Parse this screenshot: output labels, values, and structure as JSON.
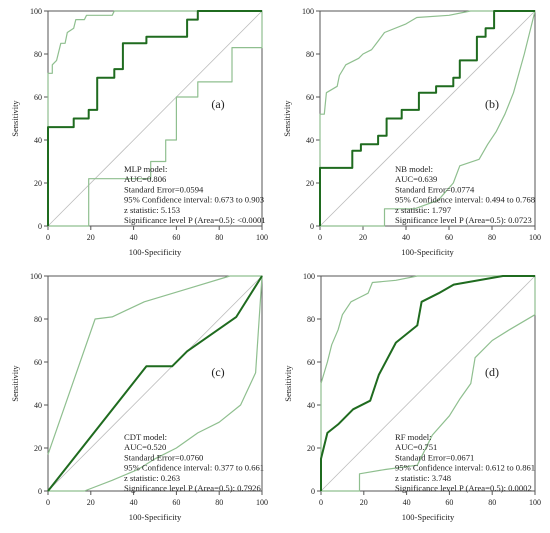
{
  "colors": {
    "roc": "#1f6b1f",
    "ci": "#8fbf8f",
    "diagonal": "#c8c8c8"
  },
  "chart_data": [
    {
      "type": "line",
      "tag": "(a)",
      "xlabel": "100-Specificity",
      "ylabel": "Sensitivity",
      "xlim": [
        0,
        100
      ],
      "ylim": [
        0,
        100
      ],
      "xticks": [
        0,
        20,
        40,
        60,
        80,
        100
      ],
      "yticks": [
        0,
        20,
        40,
        60,
        80,
        100
      ],
      "stats": [
        "MLP model:",
        "AUC=0.806",
        "Standard Error=0.0594",
        "95% Confidence interval: 0.673 to 0.903",
        "z statistic: 5.153",
        "Significance level P (Area=0.5): <0.0001"
      ],
      "series": [
        {
          "role": "roc",
          "points": [
            [
              0,
              0
            ],
            [
              0,
              46
            ],
            [
              12,
              46
            ],
            [
              12,
              50
            ],
            [
              19,
              50
            ],
            [
              19,
              54
            ],
            [
              23,
              54
            ],
            [
              23,
              69
            ],
            [
              31,
              69
            ],
            [
              31,
              73
            ],
            [
              35,
              73
            ],
            [
              35,
              85
            ],
            [
              46,
              85
            ],
            [
              46,
              88
            ],
            [
              65,
              88
            ],
            [
              65,
              96
            ],
            [
              70,
              96
            ],
            [
              70,
              100
            ],
            [
              100,
              100
            ]
          ]
        },
        {
          "role": "upper",
          "points": [
            [
              0,
              0
            ],
            [
              0,
              71
            ],
            [
              2,
              71
            ],
            [
              2,
              75
            ],
            [
              4,
              77
            ],
            [
              6,
              85
            ],
            [
              8,
              85
            ],
            [
              9,
              90
            ],
            [
              12,
              92
            ],
            [
              13,
              96
            ],
            [
              17,
              96
            ],
            [
              18,
              98
            ],
            [
              30,
              98
            ],
            [
              31,
              100
            ],
            [
              100,
              100
            ]
          ]
        },
        {
          "role": "lower",
          "points": [
            [
              0,
              0
            ],
            [
              19,
              0
            ],
            [
              19,
              22
            ],
            [
              20,
              22
            ],
            [
              48,
              22
            ],
            [
              48,
              30
            ],
            [
              55,
              30
            ],
            [
              55,
              40
            ],
            [
              60,
              40
            ],
            [
              60,
              60
            ],
            [
              70,
              60
            ],
            [
              70,
              67
            ],
            [
              86,
              67
            ],
            [
              86,
              83
            ],
            [
              100,
              83
            ],
            [
              100,
              100
            ]
          ]
        }
      ]
    },
    {
      "type": "line",
      "tag": "(b)",
      "xlabel": "100-Specificity",
      "ylabel": "Sensitivity",
      "xlim": [
        0,
        100
      ],
      "ylim": [
        0,
        100
      ],
      "xticks": [
        0,
        20,
        40,
        60,
        80,
        100
      ],
      "yticks": [
        0,
        20,
        40,
        60,
        80,
        100
      ],
      "stats": [
        "NB model:",
        "AUC=0.639",
        "Standard Error=0.0774",
        "95% Confidence interval: 0.494 to 0.768",
        "z statistic: 1.797",
        "Significance level P (Area=0.5): 0.0723"
      ],
      "series": [
        {
          "role": "roc",
          "points": [
            [
              0,
              0
            ],
            [
              0,
              27
            ],
            [
              15,
              27
            ],
            [
              15,
              35
            ],
            [
              19,
              35
            ],
            [
              19,
              38
            ],
            [
              27,
              38
            ],
            [
              27,
              42
            ],
            [
              31,
              42
            ],
            [
              31,
              50
            ],
            [
              38,
              50
            ],
            [
              38,
              54
            ],
            [
              46,
              54
            ],
            [
              46,
              62
            ],
            [
              54,
              62
            ],
            [
              54,
              65
            ],
            [
              62,
              65
            ],
            [
              62,
              69
            ],
            [
              65,
              69
            ],
            [
              65,
              77
            ],
            [
              73,
              77
            ],
            [
              73,
              88
            ],
            [
              77,
              88
            ],
            [
              77,
              92
            ],
            [
              81,
              92
            ],
            [
              81,
              100
            ],
            [
              100,
              100
            ]
          ]
        },
        {
          "role": "upper",
          "points": [
            [
              0,
              0
            ],
            [
              0,
              52
            ],
            [
              2,
              52
            ],
            [
              3,
              62
            ],
            [
              8,
              65
            ],
            [
              9,
              70
            ],
            [
              12,
              75
            ],
            [
              18,
              78
            ],
            [
              20,
              80
            ],
            [
              24,
              82
            ],
            [
              27,
              86
            ],
            [
              30,
              90
            ],
            [
              40,
              94
            ],
            [
              45,
              97
            ],
            [
              60,
              98
            ],
            [
              70,
              100
            ],
            [
              100,
              100
            ]
          ]
        },
        {
          "role": "lower",
          "points": [
            [
              0,
              0
            ],
            [
              30,
              0
            ],
            [
              30,
              8
            ],
            [
              44,
              8
            ],
            [
              55,
              12
            ],
            [
              62,
              20
            ],
            [
              65,
              28
            ],
            [
              74,
              31
            ],
            [
              78,
              38
            ],
            [
              82,
              44
            ],
            [
              86,
              52
            ],
            [
              90,
              62
            ],
            [
              95,
              80
            ],
            [
              100,
              100
            ]
          ]
        }
      ]
    },
    {
      "type": "line",
      "tag": "(c)",
      "xlabel": "100-Specificity",
      "ylabel": "Sensitivity",
      "xlim": [
        0,
        100
      ],
      "ylim": [
        0,
        100
      ],
      "xticks": [
        0,
        20,
        40,
        60,
        80,
        100
      ],
      "yticks": [
        0,
        20,
        40,
        60,
        80,
        100
      ],
      "stats": [
        "CDT model:",
        "AUC=0.520",
        "Standard Error=0.0760",
        "95% Confidence interval: 0.377 to 0.661",
        "z statistic: 0.263",
        "Significance level P (Area=0.5): 0.7926"
      ],
      "series": [
        {
          "role": "roc",
          "points": [
            [
              0,
              0
            ],
            [
              46,
              58
            ],
            [
              58,
              58
            ],
            [
              65,
              65
            ],
            [
              88,
              81
            ],
            [
              100,
              100
            ]
          ]
        },
        {
          "role": "upper",
          "points": [
            [
              0,
              17
            ],
            [
              22,
              80
            ],
            [
              30,
              81
            ],
            [
              45,
              88
            ],
            [
              65,
              94
            ],
            [
              85,
              100
            ],
            [
              100,
              100
            ]
          ]
        },
        {
          "role": "lower",
          "points": [
            [
              0,
              0
            ],
            [
              17,
              0
            ],
            [
              30,
              5
            ],
            [
              42,
              10
            ],
            [
              50,
              15
            ],
            [
              60,
              20
            ],
            [
              70,
              27
            ],
            [
              80,
              32
            ],
            [
              90,
              40
            ],
            [
              97,
              55
            ],
            [
              100,
              100
            ]
          ]
        }
      ]
    },
    {
      "type": "line",
      "tag": "(d)",
      "xlabel": "100-Specificity",
      "ylabel": "Sensitivity",
      "xlim": [
        0,
        100
      ],
      "ylim": [
        0,
        100
      ],
      "xticks": [
        0,
        20,
        40,
        60,
        80,
        100
      ],
      "yticks": [
        0,
        20,
        40,
        60,
        80,
        100
      ],
      "stats": [
        "RF model:",
        "AUC=0.751",
        "Standard Error=0.0671",
        "95% Confidence interval: 0.612 to 0.861",
        "z statistic: 3.748",
        "Significance level P (Area=0.5): 0.0002"
      ],
      "series": [
        {
          "role": "roc",
          "points": [
            [
              0,
              0
            ],
            [
              0,
              15
            ],
            [
              3,
              27
            ],
            [
              8,
              31
            ],
            [
              15,
              38
            ],
            [
              23,
              42
            ],
            [
              27,
              54
            ],
            [
              35,
              69
            ],
            [
              45,
              77
            ],
            [
              47,
              88
            ],
            [
              55,
              92
            ],
            [
              62,
              96
            ],
            [
              85,
              100
            ],
            [
              100,
              100
            ]
          ]
        },
        {
          "role": "upper",
          "points": [
            [
              0,
              0
            ],
            [
              0,
              50
            ],
            [
              3,
              60
            ],
            [
              5,
              68
            ],
            [
              8,
              75
            ],
            [
              10,
              82
            ],
            [
              14,
              88
            ],
            [
              18,
              90
            ],
            [
              22,
              92
            ],
            [
              24,
              97
            ],
            [
              35,
              98
            ],
            [
              45,
              100
            ],
            [
              100,
              100
            ]
          ]
        },
        {
          "role": "lower",
          "points": [
            [
              0,
              0
            ],
            [
              18,
              0
            ],
            [
              18,
              8
            ],
            [
              30,
              10
            ],
            [
              45,
              12
            ],
            [
              52,
              26
            ],
            [
              60,
              35
            ],
            [
              65,
              43
            ],
            [
              70,
              50
            ],
            [
              72,
              62
            ],
            [
              80,
              70
            ],
            [
              88,
              75
            ],
            [
              100,
              82
            ],
            [
              100,
              100
            ]
          ]
        }
      ]
    }
  ]
}
